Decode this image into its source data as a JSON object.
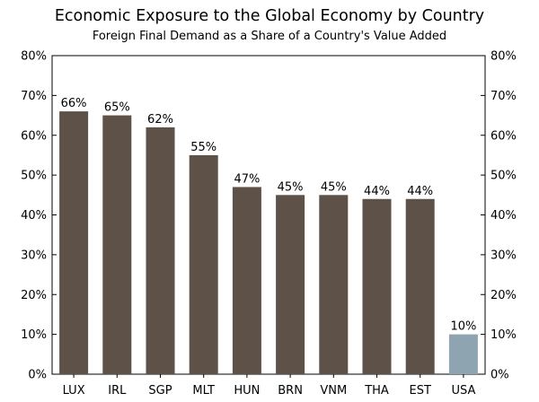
{
  "chart_data": {
    "type": "bar",
    "title": "Economic Exposure to the Global Economy by Country",
    "subtitle": "Foreign Final Demand as a Share of a Country's Value Added",
    "xlabel": "",
    "ylabel": "",
    "categories": [
      "LUX",
      "IRL",
      "SGP",
      "MLT",
      "HUN",
      "BRN",
      "VNM",
      "THA",
      "EST",
      "USA"
    ],
    "values": [
      66,
      65,
      62,
      55,
      47,
      45,
      45,
      44,
      44,
      10
    ],
    "data_labels": [
      "66%",
      "65%",
      "62%",
      "55%",
      "47%",
      "45%",
      "45%",
      "44%",
      "44%",
      "10%"
    ],
    "ylim": [
      0,
      80
    ],
    "yticks": [
      0,
      10,
      20,
      30,
      40,
      50,
      60,
      70,
      80
    ],
    "ytick_labels": [
      "0%",
      "10%",
      "20%",
      "30%",
      "40%",
      "50%",
      "60%",
      "70%",
      "80%"
    ],
    "secondary_axis": "right (mirrors left)",
    "grid": false,
    "colors": {
      "default_bar": "#5e5248",
      "highlight_bar": "#8ea4b0",
      "axis": "#000000"
    },
    "highlight_category": "USA"
  }
}
